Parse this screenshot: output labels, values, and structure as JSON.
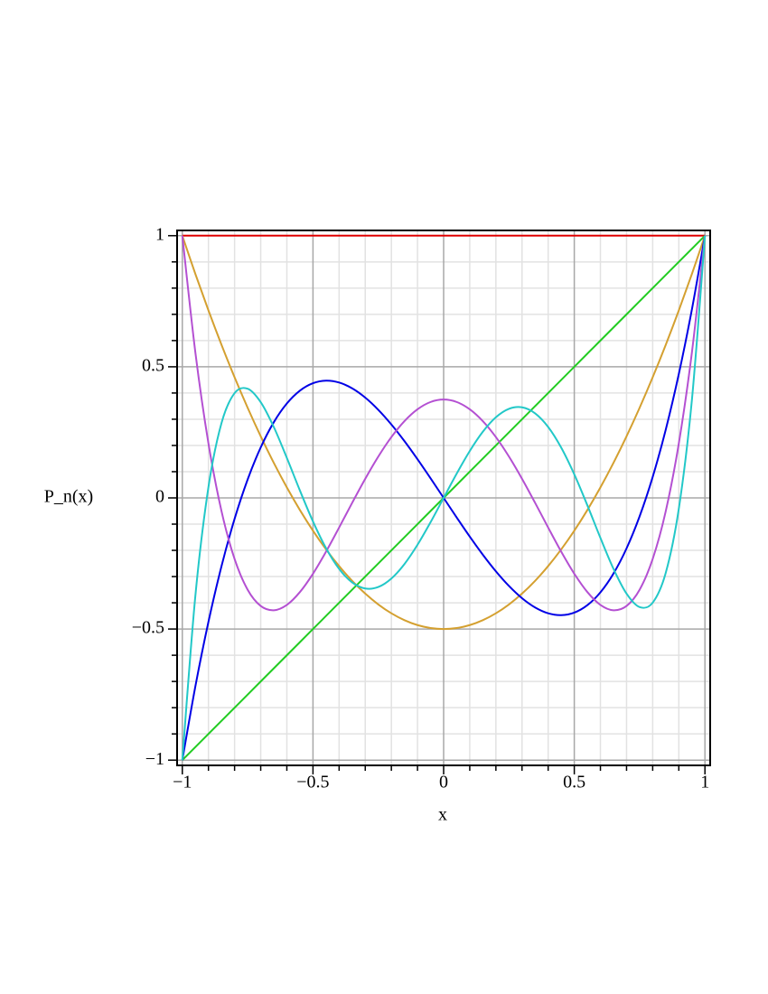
{
  "chart_data": {
    "type": "line",
    "xlabel": "x",
    "ylabel": "P_n(x)",
    "x": [
      -1,
      -0.95,
      -0.9,
      -0.85,
      -0.8,
      -0.75,
      -0.7,
      -0.65,
      -0.6,
      -0.55,
      -0.5,
      -0.45,
      -0.4,
      -0.35,
      -0.3,
      -0.25,
      -0.2,
      -0.15,
      -0.1,
      -0.05,
      0,
      0.05,
      0.1,
      0.15,
      0.2,
      0.25,
      0.3,
      0.35,
      0.4,
      0.45,
      0.5,
      0.55,
      0.6,
      0.65,
      0.7,
      0.75,
      0.8,
      0.85,
      0.9,
      0.95,
      1
    ],
    "series": [
      {
        "color": "#e00000",
        "values": [
          1,
          1,
          1,
          1,
          1,
          1,
          1,
          1,
          1,
          1,
          1,
          1,
          1,
          1,
          1,
          1,
          1,
          1,
          1,
          1,
          1,
          1,
          1,
          1,
          1,
          1,
          1,
          1,
          1,
          1,
          1,
          1,
          1,
          1,
          1,
          1,
          1,
          1,
          1,
          1,
          1
        ]
      },
      {
        "color": "#22cc22",
        "values": [
          -1,
          -0.95,
          -0.9,
          -0.85,
          -0.8,
          -0.75,
          -0.7,
          -0.65,
          -0.6,
          -0.55,
          -0.5,
          -0.45,
          -0.4,
          -0.35,
          -0.3,
          -0.25,
          -0.2,
          -0.15,
          -0.1,
          -0.05,
          0,
          0.05,
          0.1,
          0.15,
          0.2,
          0.25,
          0.3,
          0.35,
          0.4,
          0.45,
          0.5,
          0.55,
          0.6,
          0.65,
          0.7,
          0.75,
          0.8,
          0.85,
          0.9,
          0.95,
          1
        ]
      },
      {
        "color": "#d4a030",
        "values": [
          1,
          0.85375,
          0.715,
          0.58375,
          0.46,
          0.34375,
          0.235,
          0.13375,
          0.04,
          -0.04625,
          -0.125,
          -0.19625,
          -0.26,
          -0.31625,
          -0.365,
          -0.40625,
          -0.44,
          -0.46625,
          -0.485,
          -0.49625,
          -0.5,
          -0.49625,
          -0.485,
          -0.46625,
          -0.44,
          -0.40625,
          -0.365,
          -0.31625,
          -0.26,
          -0.19625,
          -0.125,
          -0.04625,
          0.04,
          0.13375,
          0.235,
          0.34375,
          0.46,
          0.58375,
          0.715,
          0.85375,
          1
        ]
      },
      {
        "color": "#0000e6",
        "values": [
          -1,
          -0.7184,
          -0.4725,
          -0.2603,
          -0.08,
          0.0703,
          0.1925,
          0.2884,
          0.36,
          0.4091,
          0.4375,
          0.4472,
          0.44,
          0.4178,
          0.3825,
          0.3359,
          0.28,
          0.2166,
          0.1475,
          0.0747,
          0,
          -0.0747,
          -0.1475,
          -0.2166,
          -0.28,
          -0.3359,
          -0.3825,
          -0.4178,
          -0.44,
          -0.4472,
          -0.4375,
          -0.4091,
          -0.36,
          -0.2884,
          -0.1925,
          -0.0703,
          0.08,
          0.2603,
          0.4725,
          0.7184,
          1
        ]
      },
      {
        "color": "#b450d2",
        "values": [
          1,
          0.5541,
          0.2079,
          -0.0506,
          -0.233,
          -0.3501,
          -0.4121,
          -0.4284,
          -0.408,
          -0.359,
          -0.2891,
          -0.205,
          -0.113,
          -0.0187,
          0.0729,
          0.1577,
          0.232,
          0.2928,
          0.3379,
          0.3657,
          0.375,
          0.3657,
          0.3379,
          0.2928,
          0.232,
          0.1577,
          0.0729,
          -0.0187,
          -0.113,
          -0.205,
          -0.2891,
          -0.359,
          -0.408,
          -0.4284,
          -0.4121,
          -0.3501,
          -0.233,
          -0.0506,
          0.2079,
          0.5541,
          1
        ]
      },
      {
        "color": "#22c8c8",
        "values": [
          -1,
          -0.3727,
          0.0411,
          0.2857,
          0.3995,
          0.4164,
          0.3652,
          0.2705,
          0.1526,
          0.0282,
          -0.0898,
          -0.1917,
          -0.2706,
          -0.3225,
          -0.3454,
          -0.3397,
          -0.3075,
          -0.2523,
          -0.1788,
          -0.0927,
          0,
          0.0927,
          0.1788,
          0.2523,
          0.3075,
          0.3397,
          0.3454,
          0.3225,
          0.2706,
          0.1917,
          0.0898,
          -0.0282,
          -0.1526,
          -0.2705,
          -0.3652,
          -0.4164,
          -0.3995,
          -0.2857,
          -0.0411,
          0.3727,
          1
        ]
      }
    ],
    "xlim": [
      -1.02,
      1.02
    ],
    "ylim": [
      -1.02,
      1.02
    ],
    "xticks": [
      {
        "value": -1,
        "label": "−1"
      },
      {
        "value": -0.5,
        "label": "−0.5"
      },
      0,
      0.5,
      1
    ],
    "yticks": [
      {
        "value": -1,
        "label": "−1"
      },
      {
        "value": -0.5,
        "label": "−0.5"
      },
      0,
      0.5,
      1
    ],
    "xminorticks": [
      -0.9,
      -0.8,
      -0.7,
      -0.6,
      -0.4,
      -0.3,
      -0.2,
      -0.1,
      0.1,
      0.2,
      0.3,
      0.4,
      0.6,
      0.7,
      0.8,
      0.9
    ],
    "yminorticks": [
      -0.9,
      -0.8,
      -0.7,
      -0.6,
      -0.4,
      -0.3,
      -0.2,
      -0.1,
      0.1,
      0.2,
      0.3,
      0.4,
      0.6,
      0.7,
      0.8,
      0.9
    ],
    "grid": true
  }
}
